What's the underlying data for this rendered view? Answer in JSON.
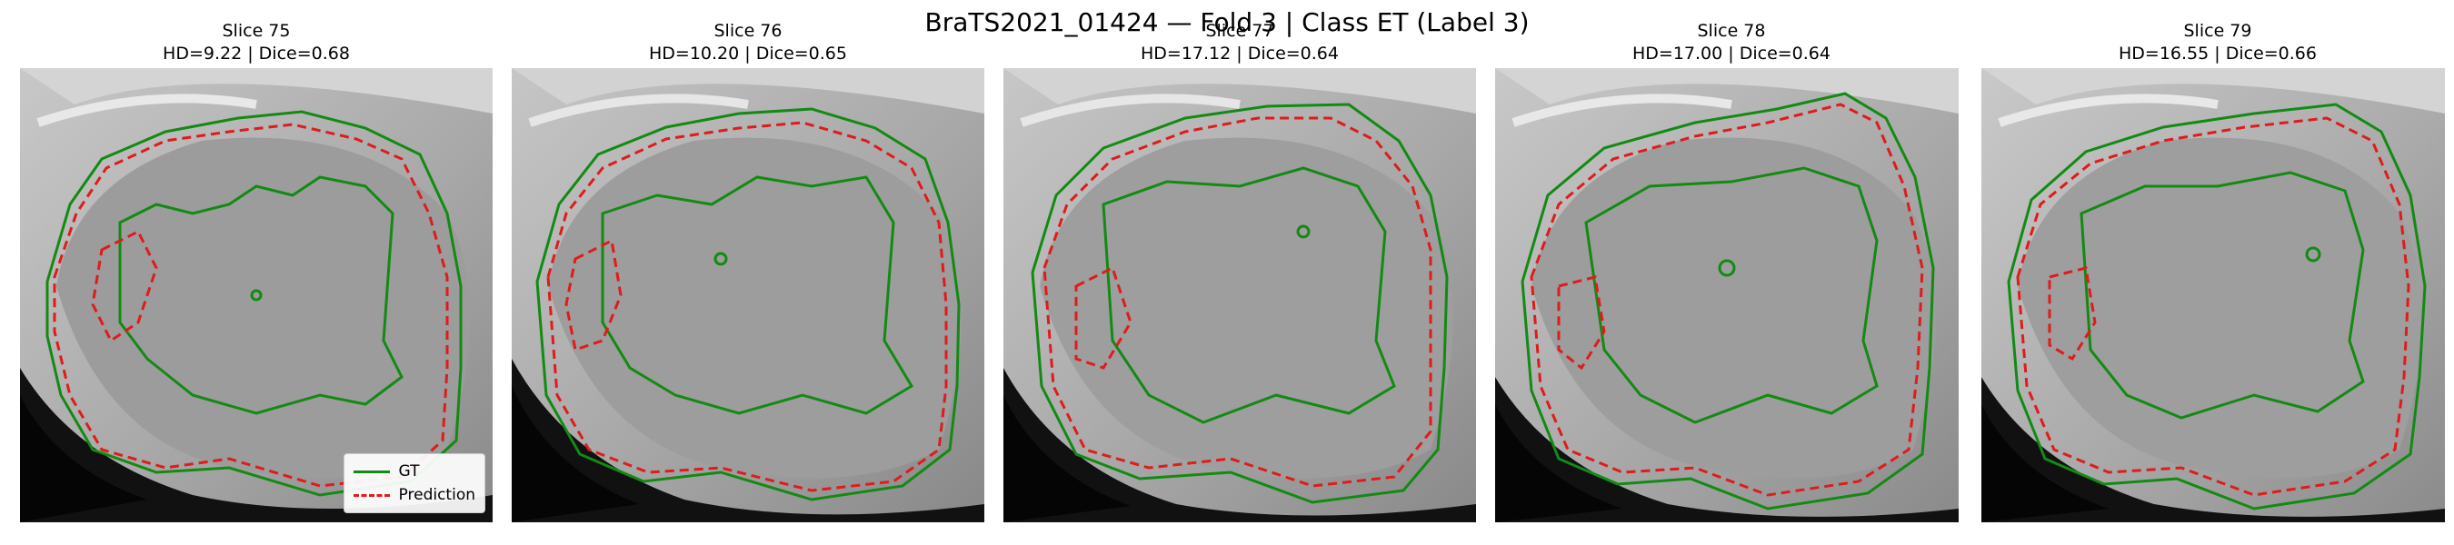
{
  "title": "BraTS2021_01424 — Fold 3 | Class ET (Label 3)",
  "panels": [
    {
      "slice": "Slice 75",
      "metrics": "HD=9.22 | Dice=0.68"
    },
    {
      "slice": "Slice 76",
      "metrics": "HD=10.20 | Dice=0.65"
    },
    {
      "slice": "Slice 77",
      "metrics": "HD=17.12 | Dice=0.64"
    },
    {
      "slice": "Slice 78",
      "metrics": "HD=17.00 | Dice=0.64"
    },
    {
      "slice": "Slice 79",
      "metrics": "HD=16.55 | Dice=0.66"
    }
  ],
  "legend": {
    "gt_label": "GT",
    "pred_label": "Prediction"
  },
  "colors": {
    "gt": "#138a13",
    "prediction": "#e01b1b"
  }
}
